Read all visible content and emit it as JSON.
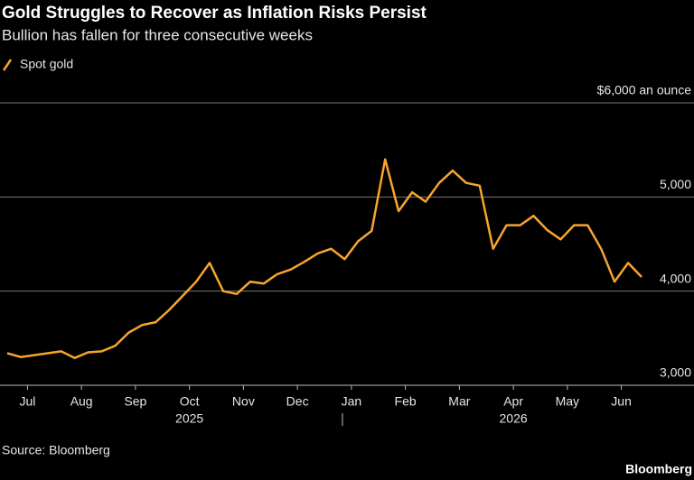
{
  "chart_data": {
    "type": "line",
    "title": "Gold Struggles to Recover as Inflation Risks Persist",
    "subtitle": "Bullion has fallen for three consecutive weeks",
    "source": "Source: Bloomberg",
    "logo": "Bloomberg",
    "x": [
      "2025-07",
      "2025-07",
      "2025-07",
      "2025-07",
      "2025-08",
      "2025-08",
      "2025-08",
      "2025-08",
      "2025-09",
      "2025-09",
      "2025-09",
      "2025-09",
      "2025-10",
      "2025-10",
      "2025-10",
      "2025-10",
      "2025-11",
      "2025-11",
      "2025-11",
      "2025-11",
      "2025-12",
      "2025-12",
      "2025-12",
      "2025-12",
      "2026-01",
      "2026-01",
      "2026-01",
      "2026-01",
      "2026-02",
      "2026-02",
      "2026-02",
      "2026-02",
      "2026-03",
      "2026-03",
      "2026-03",
      "2026-03",
      "2026-04",
      "2026-04",
      "2026-04",
      "2026-04",
      "2026-05",
      "2026-05",
      "2026-05",
      "2026-05",
      "2026-06",
      "2026-06",
      "2026-06",
      "2026-06"
    ],
    "series": [
      {
        "name": "Spot gold",
        "color": "#f7a52d",
        "values": [
          3340,
          3300,
          3320,
          3340,
          3360,
          3290,
          3350,
          3360,
          3420,
          3560,
          3640,
          3670,
          3800,
          3950,
          4100,
          4300,
          4000,
          3970,
          4100,
          4080,
          4180,
          4230,
          4310,
          4400,
          4450,
          4340,
          4530,
          4640,
          5400,
          4850,
          5050,
          4950,
          5150,
          5280,
          5150,
          5120,
          4450,
          4700,
          4700,
          4800,
          4650,
          4550,
          4700,
          4700,
          4450,
          4100,
          4300,
          4150
        ]
      }
    ],
    "xticks": [
      {
        "value": "2025-07",
        "label": "Jul"
      },
      {
        "value": "2025-08",
        "label": "Aug"
      },
      {
        "value": "2025-09",
        "label": "Sep"
      },
      {
        "value": "2025-10",
        "label": "Oct"
      },
      {
        "value": "2025-11",
        "label": "Nov"
      },
      {
        "value": "2025-12",
        "label": "Dec"
      },
      {
        "value": "2026-01",
        "label": "Jan"
      },
      {
        "value": "2026-02",
        "label": "Feb"
      },
      {
        "value": "2026-03",
        "label": "Mar"
      },
      {
        "value": "2026-04",
        "label": "Apr"
      },
      {
        "value": "2026-05",
        "label": "May"
      },
      {
        "value": "2026-06",
        "label": "Jun"
      }
    ],
    "year_labels": [
      {
        "value": "2025-10",
        "label": "2025"
      },
      {
        "value": "2026-04",
        "label": "2026"
      }
    ],
    "ylim": [
      3000,
      6000
    ],
    "yticks": [
      {
        "value": 3000,
        "label": "3,000"
      },
      {
        "value": 4000,
        "label": "4,000"
      },
      {
        "value": 5000,
        "label": "5,000"
      },
      {
        "value": 6000,
        "label": "$6,000 an ounce"
      }
    ],
    "grid": true
  }
}
